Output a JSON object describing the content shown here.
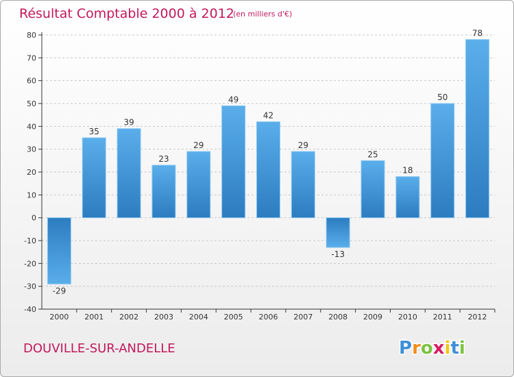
{
  "chart_data": {
    "type": "bar",
    "title": "Résultat Comptable 2000 à 2012",
    "subtitle": "(en milliers d'€)",
    "location": "DOUVILLE-SUR-ANDELLE",
    "brand": "Proxiti",
    "xlabel": "",
    "ylabel": "",
    "ylim": [
      -40,
      80
    ],
    "yticks": [
      -40,
      -30,
      -20,
      -10,
      0,
      10,
      20,
      30,
      40,
      50,
      60,
      70,
      80
    ],
    "grid": true,
    "categories": [
      "2000",
      "2001",
      "2002",
      "2003",
      "2004",
      "2005",
      "2006",
      "2007",
      "2008",
      "2009",
      "2010",
      "2011",
      "2012"
    ],
    "values": [
      -29,
      35,
      39,
      23,
      29,
      49,
      42,
      29,
      -13,
      25,
      18,
      50,
      78
    ],
    "data_labels": [
      "-29",
      "35",
      "39",
      "23",
      "29",
      "49",
      "42",
      "29",
      "-13",
      "25",
      "18",
      "50",
      "78"
    ]
  },
  "colors": {
    "title": "#c2185b",
    "axis": "#333333",
    "grid": "#c8c8c8",
    "bar_light": "#5aaeea",
    "bar_dark": "#2c7cc0"
  }
}
